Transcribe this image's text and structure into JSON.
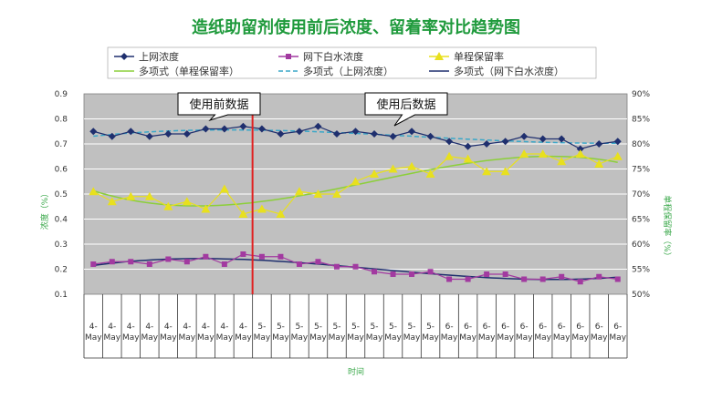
{
  "chart_data": {
    "type": "line",
    "title": "造纸助留剂使用前后浓度、留着率对比趋势图",
    "xlabel": "时间",
    "ylabel_left": "浓度（%）",
    "ylabel_right": "单程保留率（%）",
    "ylim_left": [
      0.1,
      0.9
    ],
    "ylim_right": [
      50,
      90
    ],
    "yticks_left": [
      "0.1",
      "0.2",
      "0.3",
      "0.4",
      "0.5",
      "0.6",
      "0.7",
      "0.8",
      "0.9"
    ],
    "yticks_right": [
      "50%",
      "55%",
      "60%",
      "65%",
      "70%",
      "75%",
      "80%",
      "85%",
      "90%"
    ],
    "categories": [
      "4-May",
      "4-May",
      "4-May",
      "4-May",
      "4-May",
      "4-May",
      "4-May",
      "4-May",
      "4-May",
      "5-May",
      "5-May",
      "5-May",
      "5-May",
      "5-May",
      "5-May",
      "5-May",
      "5-May",
      "5-May",
      "5-May",
      "6-May",
      "6-May",
      "6-May",
      "6-May",
      "6-May",
      "6-May",
      "6-May",
      "6-May",
      "6-May",
      "6-May"
    ],
    "grid": true,
    "legend_position": "top",
    "divider_after_index": 8.5,
    "annotations": [
      {
        "text": "使用前数据"
      },
      {
        "text": "使用后数据"
      }
    ],
    "series": [
      {
        "name": "上网浓度",
        "axis": "left",
        "color": "#1f2f6e",
        "marker": "diamond",
        "values": [
          0.75,
          0.73,
          0.75,
          0.73,
          0.74,
          0.74,
          0.76,
          0.76,
          0.77,
          0.76,
          0.74,
          0.75,
          0.77,
          0.74,
          0.75,
          0.74,
          0.73,
          0.75,
          0.73,
          0.71,
          0.69,
          0.7,
          0.71,
          0.73,
          0.72,
          0.72,
          0.68,
          0.7,
          0.71
        ]
      },
      {
        "name": "网下白水浓度",
        "axis": "left",
        "color": "#a23aa0",
        "marker": "square",
        "values": [
          0.22,
          0.23,
          0.23,
          0.22,
          0.24,
          0.23,
          0.25,
          0.22,
          0.26,
          0.25,
          0.25,
          0.22,
          0.23,
          0.21,
          0.21,
          0.19,
          0.18,
          0.18,
          0.19,
          0.16,
          0.16,
          0.18,
          0.18,
          0.16,
          0.16,
          0.17,
          0.15,
          0.17,
          0.16
        ]
      },
      {
        "name": "单程保留率",
        "axis": "right",
        "color": "#e8e01e",
        "marker": "triangle",
        "values": [
          70.5,
          68.5,
          69.5,
          69.5,
          67.5,
          68.5,
          67,
          71,
          66,
          67,
          66,
          70.5,
          70,
          70,
          72.5,
          74,
          75,
          75.5,
          74,
          77.5,
          77,
          74.5,
          74.5,
          78,
          78,
          76.5,
          78,
          76,
          77.5
        ]
      }
    ],
    "trendlines": [
      {
        "name": "多项式（单程保留率）",
        "color": "#8ccf3a",
        "style": "solid",
        "axis": "right",
        "of": "单程保留率"
      },
      {
        "name": "多项式（上网浓度）",
        "color": "#3aa7c8",
        "style": "dashed",
        "axis": "left",
        "of": "上网浓度"
      },
      {
        "name": "多项式（网下白水浓度）",
        "color": "#1f2f6e",
        "style": "solid",
        "axis": "left",
        "of": "网下白水浓度"
      }
    ],
    "colors": {
      "plot_background": "#c0c0c0",
      "gridline": "#ffffff",
      "divider": "#e02020",
      "title": "#1f9a3c"
    }
  }
}
